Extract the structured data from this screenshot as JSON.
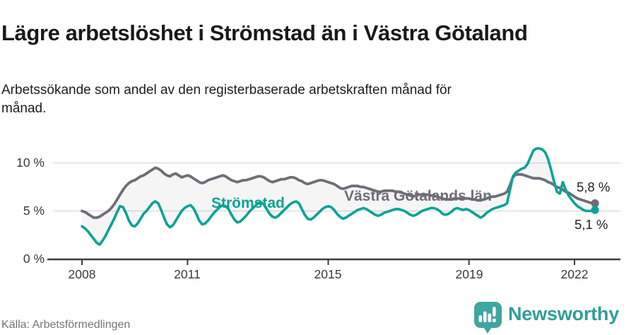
{
  "chart_data": {
    "type": "line",
    "title": "Lägre arbetslöshet i Strömstad än i Västra Götaland",
    "subtitle": "Arbetssökande som andel av den registerbaserade arbetskraften månad för månad.",
    "source": "Källa: Arbetsförmedlingen",
    "x_unit": "month",
    "x_start": "2008-01",
    "x_end": "2022-08",
    "x_tick_labels": [
      "2008",
      "2011",
      "2015",
      "2019",
      "2022"
    ],
    "x_tick_years": [
      2008,
      2011,
      2015,
      2019,
      2022
    ],
    "y_tick_labels": [
      "0 %",
      "5 %",
      "10 %"
    ],
    "y_ticks": [
      0,
      5,
      10
    ],
    "ylim": [
      0,
      12.3
    ],
    "grid": "horizontal gridlines at 5 % and 10 %",
    "legend": "inline labels next to lines",
    "area_between_series": true,
    "area_fill": "rgba(128,128,135,0.08)",
    "series": [
      {
        "name": "Västra Götalands län",
        "color": "#6e6e77",
        "end_label": "5,8 %",
        "end_value": 5.8,
        "values": [
          5.0,
          4.9,
          4.7,
          4.5,
          4.3,
          4.3,
          4.4,
          4.6,
          4.8,
          5.0,
          5.3,
          5.7,
          6.2,
          6.7,
          7.2,
          7.6,
          7.9,
          8.1,
          8.2,
          8.4,
          8.6,
          8.7,
          8.9,
          9.1,
          9.3,
          9.5,
          9.4,
          9.2,
          8.9,
          8.7,
          8.6,
          8.8,
          8.9,
          8.7,
          8.5,
          8.6,
          8.7,
          8.6,
          8.4,
          8.2,
          8.0,
          7.9,
          8.0,
          8.2,
          8.3,
          8.4,
          8.5,
          8.6,
          8.7,
          8.6,
          8.4,
          8.2,
          8.1,
          8.0,
          8.1,
          8.2,
          8.2,
          8.3,
          8.4,
          8.5,
          8.6,
          8.6,
          8.5,
          8.3,
          8.1,
          8.0,
          8.1,
          8.2,
          8.3,
          8.3,
          8.4,
          8.5,
          8.5,
          8.4,
          8.2,
          8.1,
          7.9,
          7.8,
          7.9,
          8.0,
          8.1,
          8.2,
          8.2,
          8.1,
          8.0,
          7.9,
          7.8,
          7.6,
          7.4,
          7.3,
          7.4,
          7.5,
          7.6,
          7.6,
          7.6,
          7.5,
          7.5,
          7.4,
          7.3,
          7.2,
          7.1,
          7.0,
          7.0,
          7.1,
          7.1,
          7.1,
          7.1,
          7.0,
          7.0,
          6.9,
          6.8,
          6.7,
          6.6,
          6.5,
          6.6,
          6.7,
          6.7,
          6.7,
          6.7,
          6.6,
          6.6,
          6.5,
          6.4,
          6.3,
          6.2,
          6.2,
          6.2,
          6.3,
          6.3,
          6.3,
          6.3,
          6.3,
          6.3,
          6.2,
          6.2,
          6.1,
          6.1,
          6.2,
          6.3,
          6.4,
          6.5,
          6.5,
          6.6,
          6.7,
          6.8,
          7.0,
          7.7,
          8.5,
          8.8,
          8.8,
          8.8,
          8.7,
          8.6,
          8.5,
          8.4,
          8.4,
          8.4,
          8.3,
          8.2,
          8.0,
          7.9,
          7.7,
          7.5,
          7.4,
          7.2,
          7.0,
          6.9,
          6.7,
          6.5,
          6.3,
          6.2,
          6.1,
          6.0,
          5.9,
          5.8,
          5.8
        ]
      },
      {
        "name": "Strömstad",
        "color": "#0aa396",
        "end_label": "5,1 %",
        "end_value": 5.1,
        "values": [
          3.4,
          3.2,
          2.9,
          2.5,
          2.1,
          1.7,
          1.5,
          1.9,
          2.4,
          3.0,
          3.6,
          4.2,
          4.9,
          5.5,
          5.4,
          4.8,
          4.0,
          3.5,
          3.4,
          3.7,
          4.2,
          4.7,
          5.0,
          5.4,
          5.8,
          6.0,
          5.8,
          5.1,
          4.3,
          3.6,
          3.3,
          3.5,
          4.0,
          4.5,
          5.0,
          5.3,
          5.5,
          5.6,
          5.3,
          4.7,
          4.0,
          3.6,
          3.7,
          4.0,
          4.4,
          4.8,
          5.1,
          5.4,
          5.6,
          5.5,
          5.2,
          4.6,
          4.1,
          3.8,
          3.9,
          4.2,
          4.5,
          4.9,
          5.2,
          5.5,
          5.8,
          5.9,
          5.7,
          5.2,
          4.7,
          4.4,
          4.3,
          4.5,
          4.8,
          5.1,
          5.4,
          5.7,
          5.9,
          6.0,
          5.8,
          5.2,
          4.6,
          4.2,
          4.1,
          4.3,
          4.6,
          4.9,
          5.2,
          5.4,
          5.5,
          5.4,
          5.1,
          4.7,
          4.4,
          4.2,
          4.3,
          4.5,
          4.7,
          4.9,
          5.1,
          5.2,
          5.3,
          5.2,
          5.0,
          4.8,
          4.6,
          4.5,
          4.6,
          4.8,
          4.9,
          5.0,
          5.1,
          5.2,
          5.2,
          5.1,
          5.0,
          4.8,
          4.6,
          4.5,
          4.6,
          4.8,
          5.0,
          5.1,
          5.2,
          5.3,
          5.3,
          5.2,
          5.0,
          4.7,
          4.6,
          4.7,
          4.9,
          5.2,
          5.3,
          5.2,
          5.1,
          5.2,
          5.1,
          4.9,
          4.7,
          4.5,
          4.3,
          4.5,
          4.8,
          5.0,
          5.2,
          5.3,
          5.4,
          5.5,
          5.6,
          5.8,
          7.2,
          8.6,
          9.0,
          9.2,
          9.4,
          9.5,
          9.9,
          10.6,
          11.3,
          11.5,
          11.5,
          11.4,
          11.1,
          10.4,
          9.3,
          8.1,
          7.0,
          6.8,
          8.0,
          7.2,
          6.6,
          6.2,
          5.8,
          5.5,
          5.3,
          5.1,
          5.0,
          5.0,
          5.0,
          5.1
        ]
      }
    ]
  },
  "brand": {
    "name": "Newsworthy",
    "logo_icon": "speech-bubble-bar-chart-exclamation",
    "color": "#2da099"
  }
}
